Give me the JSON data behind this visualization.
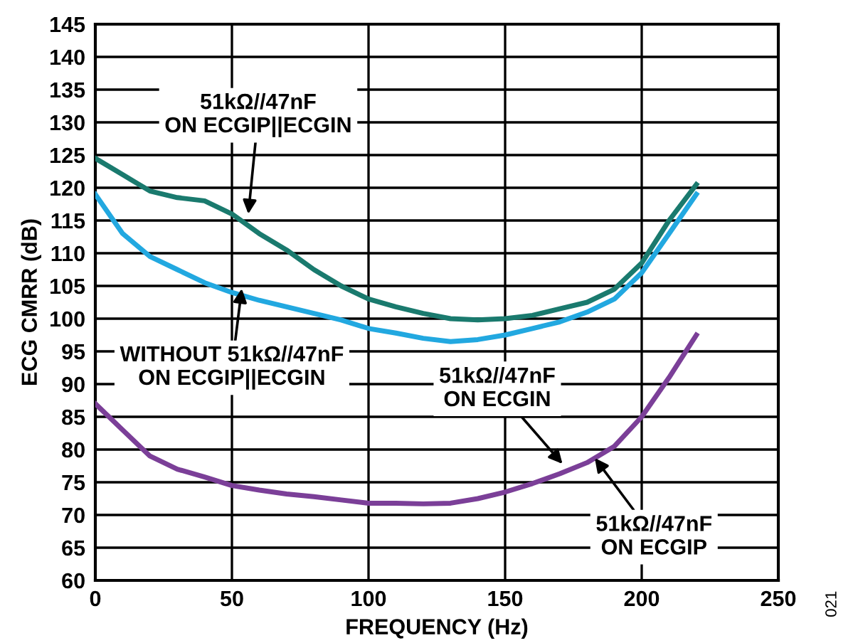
{
  "chart_data": {
    "type": "line",
    "xlabel": "FREQUENCY (Hz)",
    "ylabel": "ECG CMRR (dB)",
    "x": [
      0,
      10,
      20,
      30,
      40,
      50,
      60,
      70,
      80,
      90,
      100,
      110,
      120,
      130,
      140,
      150,
      160,
      170,
      180,
      190,
      200,
      210,
      220
    ],
    "series": [
      {
        "color": "#1a7a6e",
        "values": [
          124.5,
          122,
          119.5,
          118.5,
          118,
          116,
          113,
          110.5,
          107.5,
          105,
          103,
          101.8,
          100.8,
          100,
          99.8,
          100,
          100.5,
          101.5,
          102.5,
          104.5,
          108.5,
          115,
          120.5
        ]
      },
      {
        "color": "#22a8e0",
        "values": [
          119,
          113,
          109.5,
          107.5,
          105.5,
          104,
          102.8,
          101.8,
          100.8,
          99.8,
          98.5,
          97.8,
          97,
          96.5,
          96.8,
          97.5,
          98.5,
          99.5,
          101,
          103,
          107,
          113,
          119
        ]
      },
      {
        "color": "#7b3f98",
        "values": [
          87,
          83,
          79,
          77,
          75.8,
          74.5,
          73.8,
          73.2,
          72.8,
          72.3,
          71.8,
          71.8,
          71.7,
          71.8,
          72.5,
          73.5,
          74.8,
          76.3,
          78,
          80.5,
          85,
          91,
          97.5
        ]
      }
    ],
    "xlim": [
      0,
      250
    ],
    "xticks": [
      0,
      50,
      100,
      150,
      200,
      250
    ],
    "ylim": [
      60,
      145
    ],
    "yticks": [
      60,
      65,
      70,
      75,
      80,
      85,
      90,
      95,
      100,
      105,
      110,
      115,
      120,
      125,
      130,
      135,
      140,
      145
    ],
    "grid": true,
    "line_style": "solid",
    "marker": "none",
    "annotations": [
      {
        "text": "51kΩ//47nF\nON ECGIP||ECGIN",
        "x": 56,
        "y": 116
      },
      {
        "text": "WITHOUT 51kΩ//47nF\nON ECGIP||ECGIN",
        "x": 53.6,
        "y": 104.6
      },
      {
        "text": "51kΩ//47nF\nON ECGIN",
        "x": 171,
        "y": 77.8
      },
      {
        "text": "51kΩ//47nF\nON ECGIP",
        "x": 182.8,
        "y": 78.7
      },
      "021"
    ]
  }
}
